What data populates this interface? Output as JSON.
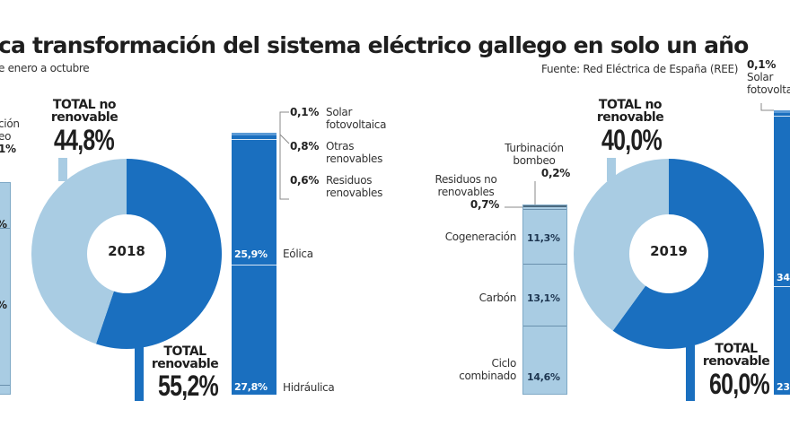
{
  "header": {
    "title": "ca transformación del sistema eléctrico gallego en solo un año",
    "subtitle": "e enero a octubre",
    "source": "Fuente: Red Eléctrica de España (REE)"
  },
  "colors": {
    "renovable": "#1a6fbf",
    "no_renovable": "#a9cce3",
    "background": "#ffffff"
  },
  "left_fragment": {
    "lines": [
      "ción",
      "eo",
      "1%"
    ],
    "pct_partial": "%"
  },
  "chart_data": [
    {
      "type": "pie",
      "year": "2018",
      "slices": [
        {
          "name": "TOTAL renovable",
          "value": 55.2,
          "label": "55,2%"
        },
        {
          "name": "TOTAL no renovable",
          "value": 44.8,
          "label": "44,8%"
        }
      ],
      "renovable_title": [
        "TOTAL",
        "renovable"
      ],
      "no_renovable_title": [
        "TOTAL no",
        "renovable"
      ],
      "renovable_breakdown": [
        {
          "name": "Solar fotovoltaica",
          "name_lines": [
            "Solar",
            "fotovoltaica"
          ],
          "value": 0.1,
          "label": "0,1%"
        },
        {
          "name": "Otras renovables",
          "name_lines": [
            "Otras",
            "renovables"
          ],
          "value": 0.8,
          "label": "0,8%"
        },
        {
          "name": "Residuos renovables",
          "name_lines": [
            "Residuos",
            "renovables"
          ],
          "value": 0.6,
          "label": "0,6%"
        },
        {
          "name": "Eólica",
          "value": 25.9,
          "label": "25,9%"
        },
        {
          "name": "Hidráulica",
          "value": 27.8,
          "label": "27,8%"
        }
      ]
    },
    {
      "type": "pie",
      "year": "2019",
      "slices": [
        {
          "name": "TOTAL renovable",
          "value": 60.0,
          "label": "60,0%"
        },
        {
          "name": "TOTAL no renovable",
          "value": 40.0,
          "label": "40,0%"
        }
      ],
      "renovable_title": [
        "TOTAL",
        "renovable"
      ],
      "no_renovable_title": [
        "TOTAL no",
        "renovable"
      ],
      "no_renovable_breakdown": [
        {
          "name": "Turbinación bombeo",
          "name_lines": [
            "Turbinación",
            "bombeo"
          ],
          "value": 0.2,
          "label": "0,2%"
        },
        {
          "name": "Residuos no renovables",
          "name_lines": [
            "Residuos no",
            "renovables"
          ],
          "value": 0.7,
          "label": "0,7%"
        },
        {
          "name": "Cogeneración",
          "value": 11.3,
          "label": "11,3%"
        },
        {
          "name": "Carbón",
          "value": 13.1,
          "label": "13,1%"
        },
        {
          "name": "Ciclo combinado",
          "name_lines": [
            "Ciclo",
            "combinado"
          ],
          "value": 14.6,
          "label": "14,6%"
        }
      ],
      "renovable_partial": {
        "top_label": "0,1%",
        "top_name_lines": [
          "Solar",
          "fotovolta"
        ],
        "mid_label": "34",
        "bottom_label": "23"
      }
    }
  ]
}
